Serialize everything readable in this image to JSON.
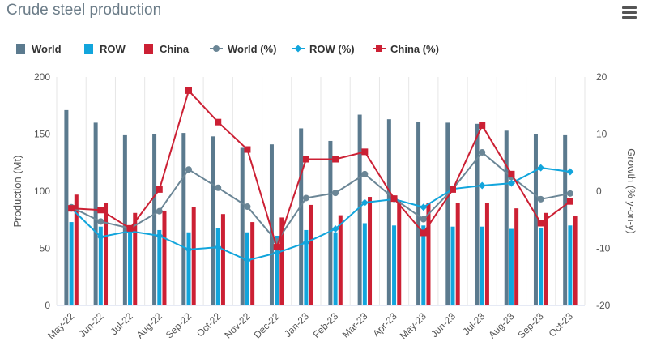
{
  "title": "Crude steel production",
  "menu_icon": "hamburger-menu-icon",
  "chart_data": {
    "type": "bar+line",
    "categories": [
      "May-22",
      "Jun-22",
      "Jul-22",
      "Aug-22",
      "Sep-22",
      "Oct-22",
      "Nov-22",
      "Dec-22",
      "Jan-23",
      "Feb-23",
      "Mar-23",
      "Apr-23",
      "May-23",
      "Jun-23",
      "Jul-23",
      "Aug-23",
      "Sep-23",
      "Oct-23"
    ],
    "left_axis": {
      "label": "Production (Mt)",
      "min": 0,
      "max": 200,
      "ticks": [
        0,
        50,
        100,
        150,
        200
      ]
    },
    "right_axis": {
      "label": "Growth (% y-on-y)",
      "min": -20,
      "max": 20,
      "ticks": [
        -20,
        -10,
        0,
        10,
        20
      ]
    },
    "bar_series": [
      {
        "name": "World",
        "color": "#5b7a8e",
        "values": [
          171,
          160,
          149,
          150,
          151,
          148,
          138,
          141,
          155,
          144,
          167,
          163,
          161,
          160,
          159,
          153,
          150,
          149
        ]
      },
      {
        "name": "ROW",
        "color": "#12a5dc",
        "values": [
          73,
          69,
          65,
          66,
          64,
          68,
          64,
          61,
          66,
          64,
          72,
          70,
          70,
          69,
          69,
          67,
          68,
          70
        ]
      },
      {
        "name": "China",
        "color": "#cc2034",
        "values": [
          97,
          90,
          81,
          83,
          86,
          80,
          73,
          77,
          88,
          79,
          95,
          92,
          90,
          90,
          90,
          85,
          81,
          78
        ]
      }
    ],
    "line_series": [
      {
        "name": "World (%)",
        "color": "#6b8696",
        "marker": "circle",
        "values": [
          -2.8,
          -5.3,
          -6.5,
          -3.5,
          3.8,
          0.6,
          -2.7,
          -8.8,
          -1.2,
          -0.3,
          3.0,
          -1.3,
          -4.9,
          0.4,
          6.8,
          2.5,
          -1.4,
          -0.4
        ]
      },
      {
        "name": "ROW (%)",
        "color": "#12a5dc",
        "marker": "diamond",
        "values": [
          -3.0,
          -8.0,
          -7.0,
          -7.8,
          -10.2,
          -9.8,
          -12.1,
          -10.8,
          -9.0,
          -6.6,
          -2.0,
          -1.4,
          -2.8,
          0.4,
          1.0,
          1.4,
          4.1,
          3.4
        ]
      },
      {
        "name": "China (%)",
        "color": "#cc2034",
        "marker": "square",
        "values": [
          -3.0,
          -3.3,
          -6.5,
          0.3,
          17.6,
          12.1,
          7.3,
          -9.8,
          5.6,
          5.6,
          6.9,
          -1.3,
          -7.3,
          0.3,
          11.5,
          3.0,
          -5.6,
          -1.8
        ]
      }
    ],
    "legend": {
      "position": "top-left",
      "items": [
        "World",
        "ROW",
        "China",
        "World (%)",
        "ROW (%)",
        "China (%)"
      ]
    },
    "grid": {
      "vertical": true,
      "horizontal": false
    }
  }
}
